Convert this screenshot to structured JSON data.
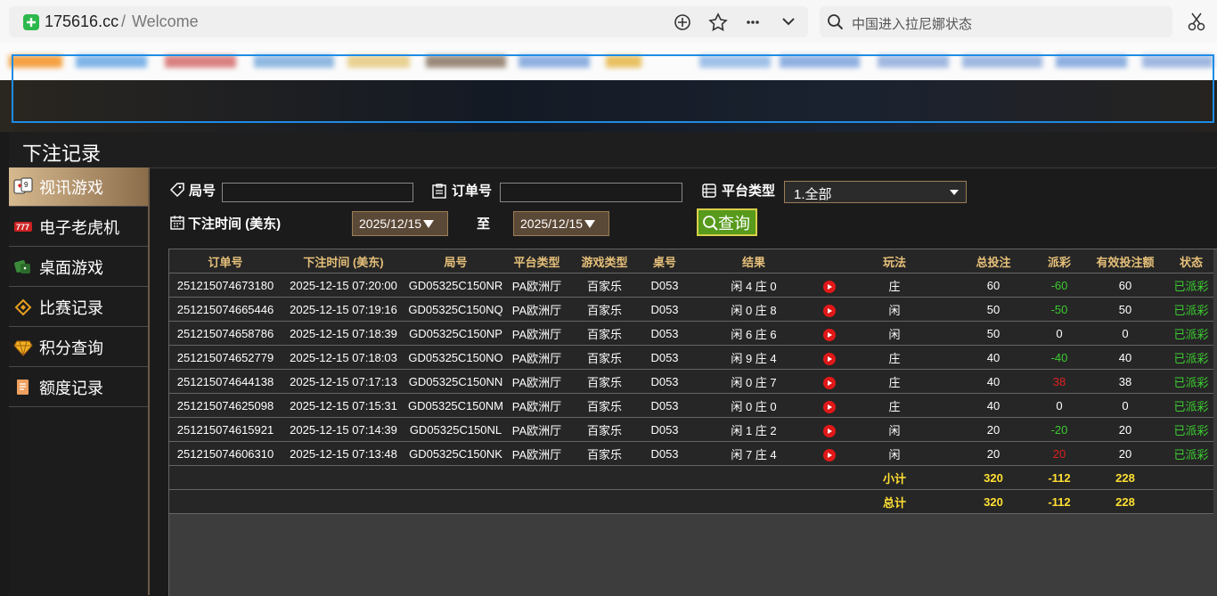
{
  "browser": {
    "domain": "175616.cc",
    "separator": "/",
    "page_title": "Welcome",
    "search_query": "中国进入拉尼娜状态"
  },
  "modal": {
    "title": "下注记录"
  },
  "sidebar": {
    "items": [
      "视讯游戏",
      "电子老虎机",
      "桌面游戏",
      "比赛记录",
      "积分查询",
      "额度记录"
    ]
  },
  "filters": {
    "round_label": "局号",
    "order_label": "订单号",
    "platform_label": "平台类型",
    "platform_value": "1.全部",
    "time_label": "下注时间 (美东)",
    "date_from": "2025/12/15",
    "to_label": "至",
    "date_to": "2025/12/15",
    "query_button": "查询"
  },
  "table": {
    "headers": [
      "订单号",
      "下注时间 (美东)",
      "局号",
      "平台类型",
      "游戏类型",
      "桌号",
      "结果",
      "玩法",
      "总投注",
      "派彩",
      "有效投注额",
      "状态"
    ],
    "rows": [
      [
        "251215074673180",
        "2025-12-15 07:20:00",
        "GD05325C150NR",
        "PA欧洲厅",
        "百家乐",
        "D053",
        "闲 4 庄 0",
        "庄",
        "60",
        "-60",
        "60",
        "已派彩"
      ],
      [
        "251215074665446",
        "2025-12-15 07:19:16",
        "GD05325C150NQ",
        "PA欧洲厅",
        "百家乐",
        "D053",
        "闲 0 庄 8",
        "闲",
        "50",
        "-50",
        "50",
        "已派彩"
      ],
      [
        "251215074658786",
        "2025-12-15 07:18:39",
        "GD05325C150NP",
        "PA欧洲厅",
        "百家乐",
        "D053",
        "闲 6 庄 6",
        "闲",
        "50",
        "0",
        "0",
        "已派彩"
      ],
      [
        "251215074652779",
        "2025-12-15 07:18:03",
        "GD05325C150NO",
        "PA欧洲厅",
        "百家乐",
        "D053",
        "闲 9 庄 4",
        "庄",
        "40",
        "-40",
        "40",
        "已派彩"
      ],
      [
        "251215074644138",
        "2025-12-15 07:17:13",
        "GD05325C150NN",
        "PA欧洲厅",
        "百家乐",
        "D053",
        "闲 0 庄 7",
        "庄",
        "40",
        "38",
        "38",
        "已派彩"
      ],
      [
        "251215074625098",
        "2025-12-15 07:15:31",
        "GD05325C150NM",
        "PA欧洲厅",
        "百家乐",
        "D053",
        "闲 0 庄 0",
        "庄",
        "40",
        "0",
        "0",
        "已派彩"
      ],
      [
        "251215074615921",
        "2025-12-15 07:14:39",
        "GD05325C150NL",
        "PA欧洲厅",
        "百家乐",
        "D053",
        "闲 1 庄 2",
        "闲",
        "20",
        "-20",
        "20",
        "已派彩"
      ],
      [
        "251215074606310",
        "2025-12-15 07:13:48",
        "GD05325C150NK",
        "PA欧洲厅",
        "百家乐",
        "D053",
        "闲 7 庄 4",
        "闲",
        "20",
        "20",
        "20",
        "已派彩"
      ]
    ],
    "subtotal": {
      "label": "小计",
      "bet": "320",
      "payout": "-112",
      "valid": "228"
    },
    "total": {
      "label": "总计",
      "bet": "320",
      "payout": "-112",
      "valid": "228"
    }
  }
}
